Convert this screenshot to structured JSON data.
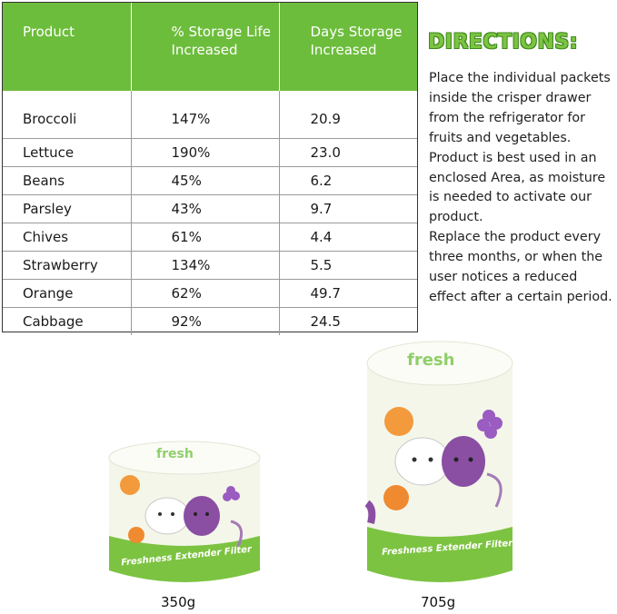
{
  "table": {
    "headers": [
      "Product",
      "% Storage Life Increased",
      "Days Storage Increased"
    ],
    "rows": [
      [
        "Broccoli",
        "147%",
        "20.9"
      ],
      [
        "Lettuce",
        "190%",
        "23.0"
      ],
      [
        "Beans",
        "45%",
        "6.2"
      ],
      [
        "Parsley",
        "43%",
        "9.7"
      ],
      [
        "Chives",
        "61%",
        "4.4"
      ],
      [
        "Strawberry",
        "134%",
        "5.5"
      ],
      [
        "Orange",
        "62%",
        "49.7"
      ],
      [
        "Cabbage",
        "92%",
        "24.5"
      ]
    ]
  },
  "directions": {
    "title": "DIRECTIONS:",
    "paragraphs": [
      "Place the individual packets inside the crisper drawer from the refrigerator for fruits and vegetables. Product is best used in an enclosed Area, as moisture is needed to activate our product.",
      "Replace the product every three months, or when the user notices a reduced effect after a certain period."
    ]
  },
  "products": {
    "small": {
      "label": "Freshness Extender Filter",
      "size": "350g"
    },
    "large": {
      "label": "Freshness Extender Filter",
      "size": "705g"
    }
  },
  "colors": {
    "accent_green": "#6dbd3c",
    "band_green": "#7cc341",
    "purple": "#8a4fa3",
    "orange": "#f39a3c"
  }
}
